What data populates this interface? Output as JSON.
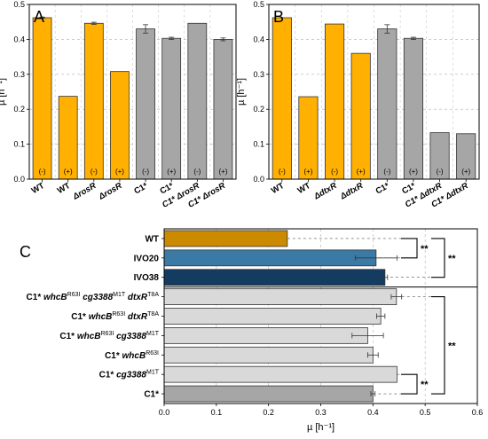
{
  "colors": {
    "orange": "#FFB000",
    "gray": "#A6A6A6",
    "wt": "#CC8A00",
    "ivo20": "#3C7AA6",
    "ivo38": "#143C61",
    "light": "#D9D9D9",
    "c1": "#A6A6A6"
  },
  "chart_data": [
    {
      "type": "bar",
      "panel": "A",
      "ylabel": "µ [h⁻¹]",
      "ylim": [
        0,
        0.5
      ],
      "yticks": [
        "0.0",
        "0.1",
        "0.2",
        "0.3",
        "0.4",
        "0.5"
      ],
      "grid": true,
      "categories": [
        {
          "label": "WT",
          "italic": false
        },
        {
          "label": "WT",
          "italic": false
        },
        {
          "label": "ΔrosR",
          "italic": true
        },
        {
          "label": "ΔrosR",
          "italic": true
        },
        {
          "label": "C1*",
          "italic": false
        },
        {
          "label": "C1*",
          "italic": false
        },
        {
          "label": "C1* ΔrosR",
          "italic": true
        },
        {
          "label": "C1* ΔrosR",
          "italic": true
        }
      ],
      "condition": [
        "(-)",
        "(+)",
        "(-)",
        "(+)",
        "(-)",
        "(+)",
        "(-)",
        "(+)"
      ],
      "values": [
        0.462,
        0.237,
        0.446,
        0.308,
        0.43,
        0.403,
        0.446,
        0.4
      ],
      "errors": [
        0.002,
        0.0,
        0.003,
        0.0,
        0.012,
        0.003,
        0.0,
        0.004
      ],
      "colors": [
        "orange",
        "orange",
        "orange",
        "orange",
        "gray",
        "gray",
        "gray",
        "gray"
      ]
    },
    {
      "type": "bar",
      "panel": "B",
      "ylabel": "µ [h⁻¹]",
      "ylim": [
        0,
        0.5
      ],
      "yticks": [
        "0.0",
        "0.1",
        "0.2",
        "0.3",
        "0.4",
        "0.5"
      ],
      "grid": true,
      "categories": [
        {
          "label": "WT",
          "italic": false
        },
        {
          "label": "WT",
          "italic": false
        },
        {
          "label": "ΔdtxR",
          "italic": true
        },
        {
          "label": "ΔdtxR",
          "italic": true
        },
        {
          "label": "C1*",
          "italic": false
        },
        {
          "label": "C1*",
          "italic": false
        },
        {
          "label": "C1* ΔdtxR",
          "italic": true
        },
        {
          "label": "C1* ΔdtxR",
          "italic": true
        }
      ],
      "condition": [
        "(-)",
        "(+)",
        "(-)",
        "(+)",
        "(-)",
        "(+)",
        "(-)",
        "(+)"
      ],
      "values": [
        0.462,
        0.236,
        0.444,
        0.36,
        0.43,
        0.403,
        0.133,
        0.13
      ],
      "errors": [
        0.0,
        0.0,
        0.0,
        0.0,
        0.012,
        0.003,
        0.0,
        0.0
      ],
      "colors": [
        "orange",
        "orange",
        "orange",
        "orange",
        "gray",
        "gray",
        "gray",
        "gray"
      ]
    },
    {
      "type": "bar",
      "orientation": "horizontal",
      "panel": "C",
      "xlabel": "µ [h⁻¹]",
      "xlim": [
        0,
        0.6
      ],
      "xticks": [
        "0.0",
        "0.1",
        "0.2",
        "0.3",
        "0.4",
        "0.5",
        "0.6"
      ],
      "grid": true,
      "categories": [
        {
          "parts": [
            [
              "WT",
              "n"
            ]
          ]
        },
        {
          "parts": [
            [
              "IVO20",
              "n"
            ]
          ]
        },
        {
          "parts": [
            [
              "IVO38",
              "n"
            ]
          ]
        },
        {
          "parts": [
            [
              "C1* ",
              "b"
            ],
            [
              "whcB",
              "bi"
            ],
            [
              "R63I",
              "sup"
            ],
            [
              " cg3388",
              "bi"
            ],
            [
              "M1T",
              "sup"
            ],
            [
              " dtxR",
              "bi"
            ],
            [
              "T8A",
              "sup"
            ]
          ]
        },
        {
          "parts": [
            [
              "C1* ",
              "b"
            ],
            [
              "whcB",
              "bi"
            ],
            [
              "R63I",
              "sup"
            ],
            [
              " dtxR",
              "bi"
            ],
            [
              "T8A",
              "sup"
            ]
          ]
        },
        {
          "parts": [
            [
              "C1* ",
              "b"
            ],
            [
              "whcB",
              "bi"
            ],
            [
              "R63I",
              "sup"
            ],
            [
              " cg3388",
              "bi"
            ],
            [
              "M1T",
              "sup"
            ]
          ]
        },
        {
          "parts": [
            [
              "C1* ",
              "b"
            ],
            [
              "whcB",
              "bi"
            ],
            [
              "R63I",
              "sup"
            ]
          ]
        },
        {
          "parts": [
            [
              "C1* ",
              "b"
            ],
            [
              "cg3388",
              "bi"
            ],
            [
              "M1T",
              "sup"
            ]
          ]
        },
        {
          "parts": [
            [
              "C1*",
              "n"
            ]
          ]
        }
      ],
      "values": [
        0.236,
        0.406,
        0.423,
        0.445,
        0.415,
        0.39,
        0.4,
        0.446,
        0.4
      ],
      "errors": [
        0.0,
        0.04,
        0.005,
        0.01,
        0.008,
        0.03,
        0.01,
        0.0,
        0.004
      ],
      "colors": [
        "wt",
        "ivo20",
        "ivo38",
        "light",
        "light",
        "light",
        "light",
        "light",
        "c1"
      ],
      "significance": [
        "**",
        "**",
        "**",
        "**"
      ]
    }
  ],
  "panel_letters": [
    "A",
    "B",
    "C"
  ]
}
